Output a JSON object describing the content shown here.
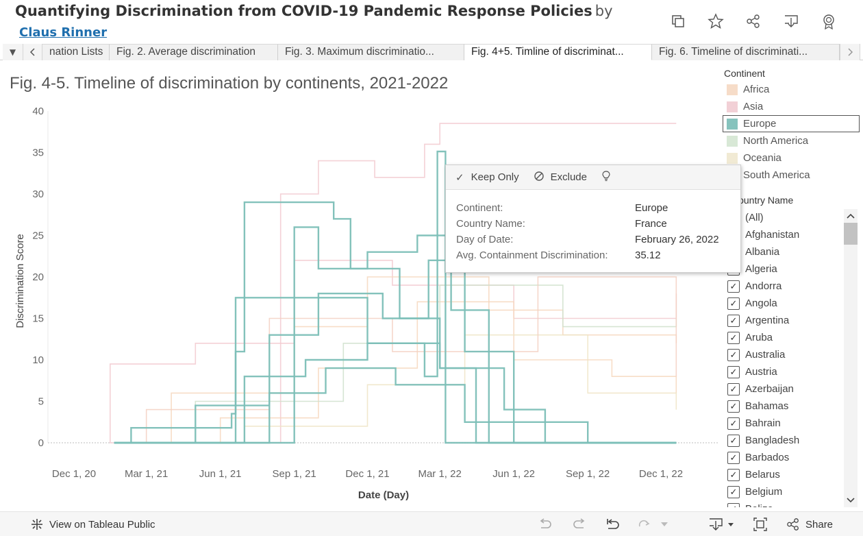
{
  "header": {
    "title": "Quantifying Discrimination from COVID-19 Pandemic Response Policies",
    "by": "by",
    "author": "Claus Rinner"
  },
  "tabs": [
    {
      "label": "nation Lists",
      "active": false
    },
    {
      "label": "Fig. 2. Average discrimination",
      "active": false
    },
    {
      "label": "Fig. 3. Maximum discriminatio...",
      "active": false
    },
    {
      "label": "Fig. 4+5. Timline of discriminat...",
      "active": true
    },
    {
      "label": "Fig. 6. Timeline of discriminati...",
      "active": false
    }
  ],
  "chart_title": "Fig. 4-5. Timeline of discrimination by continents, 2021-2022",
  "chart_data": {
    "type": "line",
    "xlabel": "Date (Day)",
    "ylabel": "Discrimination Score",
    "x_ticks": [
      "Dec 1, 20",
      "Mar 1, 21",
      "Jun 1, 21",
      "Sep 1, 21",
      "Dec 1, 21",
      "Mar 1, 22",
      "Jun 1, 22",
      "Sep 1, 22",
      "Dec 1, 22"
    ],
    "y_ticks": [
      "0",
      "5",
      "10",
      "15",
      "20",
      "25",
      "30",
      "35",
      "40"
    ],
    "ylim": [
      0,
      40
    ],
    "highlighted_series": "Europe",
    "series_colors": {
      "Europe": "#7cbfb7",
      "Africa": "#f6d7bd",
      "Asia": "#f2c9cf",
      "North America": "#cfe1cb",
      "Oceania": "#efe4c6",
      "South America": "#f3d0c2"
    },
    "series": [
      {
        "name": "Europe",
        "country": "France",
        "x": [
          "2021-02-10",
          "2021-06-15",
          "2021-06-20",
          "2021-09-01",
          "2021-12-01",
          "2022-02-10",
          "2022-02-26",
          "2022-03-08"
        ],
        "values": [
          1.8,
          3.5,
          17.5,
          17.5,
          12,
          8,
          35.12,
          0
        ]
      },
      {
        "name": "Europe",
        "x": [
          "2021-06-20",
          "2021-07-01",
          "2021-09-01",
          "2021-10-20",
          "2021-11-10",
          "2022-01-10",
          "2022-03-01",
          "2022-04-15"
        ],
        "values": [
          11,
          29,
          29,
          27,
          21,
          15,
          9,
          0
        ]
      },
      {
        "name": "Europe",
        "x": [
          "2021-09-01",
          "2021-10-01",
          "2021-12-01",
          "2022-02-01",
          "2022-03-15",
          "2022-05-01"
        ],
        "values": [
          26,
          21,
          23,
          25,
          16,
          0
        ]
      },
      {
        "name": "Europe",
        "x": [
          "2021-08-01",
          "2021-10-01",
          "2021-12-20",
          "2022-02-15",
          "2022-04-01",
          "2022-06-01"
        ],
        "values": [
          13,
          18,
          15,
          22,
          11,
          0
        ]
      },
      {
        "name": "Europe",
        "x": [
          "2021-07-01",
          "2021-09-15",
          "2021-12-01",
          "2022-03-01",
          "2022-05-20",
          "2022-07-10"
        ],
        "values": [
          8,
          10,
          12,
          9,
          4,
          0
        ]
      },
      {
        "name": "Europe",
        "x": [
          "2021-05-01",
          "2021-08-01",
          "2021-10-10",
          "2022-01-05",
          "2022-04-01",
          "2022-09-01"
        ],
        "values": [
          4.5,
          6,
          9,
          7,
          2.5,
          0
        ]
      },
      {
        "name": "Asia",
        "x": [
          "2021-08-15",
          "2021-10-01",
          "2021-12-10",
          "2022-02-10",
          "2022-03-01",
          "2022-12-20"
        ],
        "values": [
          30,
          34,
          32,
          36,
          38.5,
          38.5
        ]
      },
      {
        "name": "Asia",
        "x": [
          "2021-01-15",
          "2021-05-01",
          "2021-09-01",
          "2022-01-01",
          "2022-06-01",
          "2022-12-20"
        ],
        "values": [
          9.5,
          12,
          22,
          19,
          15,
          18
        ]
      },
      {
        "name": "Africa",
        "x": [
          "2021-04-01",
          "2021-09-01",
          "2021-12-01",
          "2022-05-01",
          "2022-08-01",
          "2022-12-20"
        ],
        "values": [
          6,
          14,
          20,
          16,
          13,
          12
        ]
      },
      {
        "name": "Africa",
        "x": [
          "2021-06-01",
          "2021-10-01",
          "2022-02-01",
          "2022-06-01",
          "2022-10-01",
          "2022-12-20"
        ],
        "values": [
          3,
          9,
          17,
          10,
          8,
          6
        ]
      },
      {
        "name": "North America",
        "x": [
          "2021-05-01",
          "2021-11-01",
          "2022-03-01",
          "2022-08-01",
          "2022-12-20"
        ],
        "values": [
          5,
          12,
          19,
          14,
          15
        ]
      },
      {
        "name": "Oceania",
        "x": [
          "2021-07-01",
          "2021-12-01",
          "2022-04-01",
          "2022-09-01",
          "2022-12-20"
        ],
        "values": [
          2,
          7,
          13,
          6,
          4
        ]
      },
      {
        "name": "South America",
        "x": [
          "2021-03-01",
          "2021-08-01",
          "2022-01-01",
          "2022-07-01",
          "2022-12-20"
        ],
        "values": [
          4,
          15,
          11,
          20,
          8
        ]
      }
    ]
  },
  "legend": {
    "title": "Continent",
    "items": [
      {
        "label": "Africa",
        "color": "#f6dcc8"
      },
      {
        "label": "Asia",
        "color": "#f2d0d6"
      },
      {
        "label": "Europe",
        "color": "#86c3bd"
      },
      {
        "label": "North America",
        "color": "#d8e8d6"
      },
      {
        "label": "Oceania",
        "color": "#f1ead4"
      },
      {
        "label": "South America",
        "color": "#f3d6cc"
      }
    ]
  },
  "filter": {
    "title": "Country Name",
    "items": [
      "(All)",
      "Afghanistan",
      "Albania",
      "Algeria",
      "Andorra",
      "Angola",
      "Argentina",
      "Aruba",
      "Australia",
      "Austria",
      "Azerbaijan",
      "Bahamas",
      "Bahrain",
      "Bangladesh",
      "Barbados",
      "Belarus",
      "Belgium",
      "Belize"
    ]
  },
  "tooltip": {
    "keep_only": "Keep Only",
    "exclude": "Exclude",
    "rows": [
      {
        "label": "Continent:",
        "value": "Europe"
      },
      {
        "label": "Country Name:",
        "value": "France"
      },
      {
        "label": "Day of Date:",
        "value": "February 26, 2022"
      },
      {
        "label": "Avg. Containment Discrimination:",
        "value": "35.12"
      }
    ]
  },
  "footer": {
    "view_public": "View on Tableau Public",
    "share": "Share"
  }
}
